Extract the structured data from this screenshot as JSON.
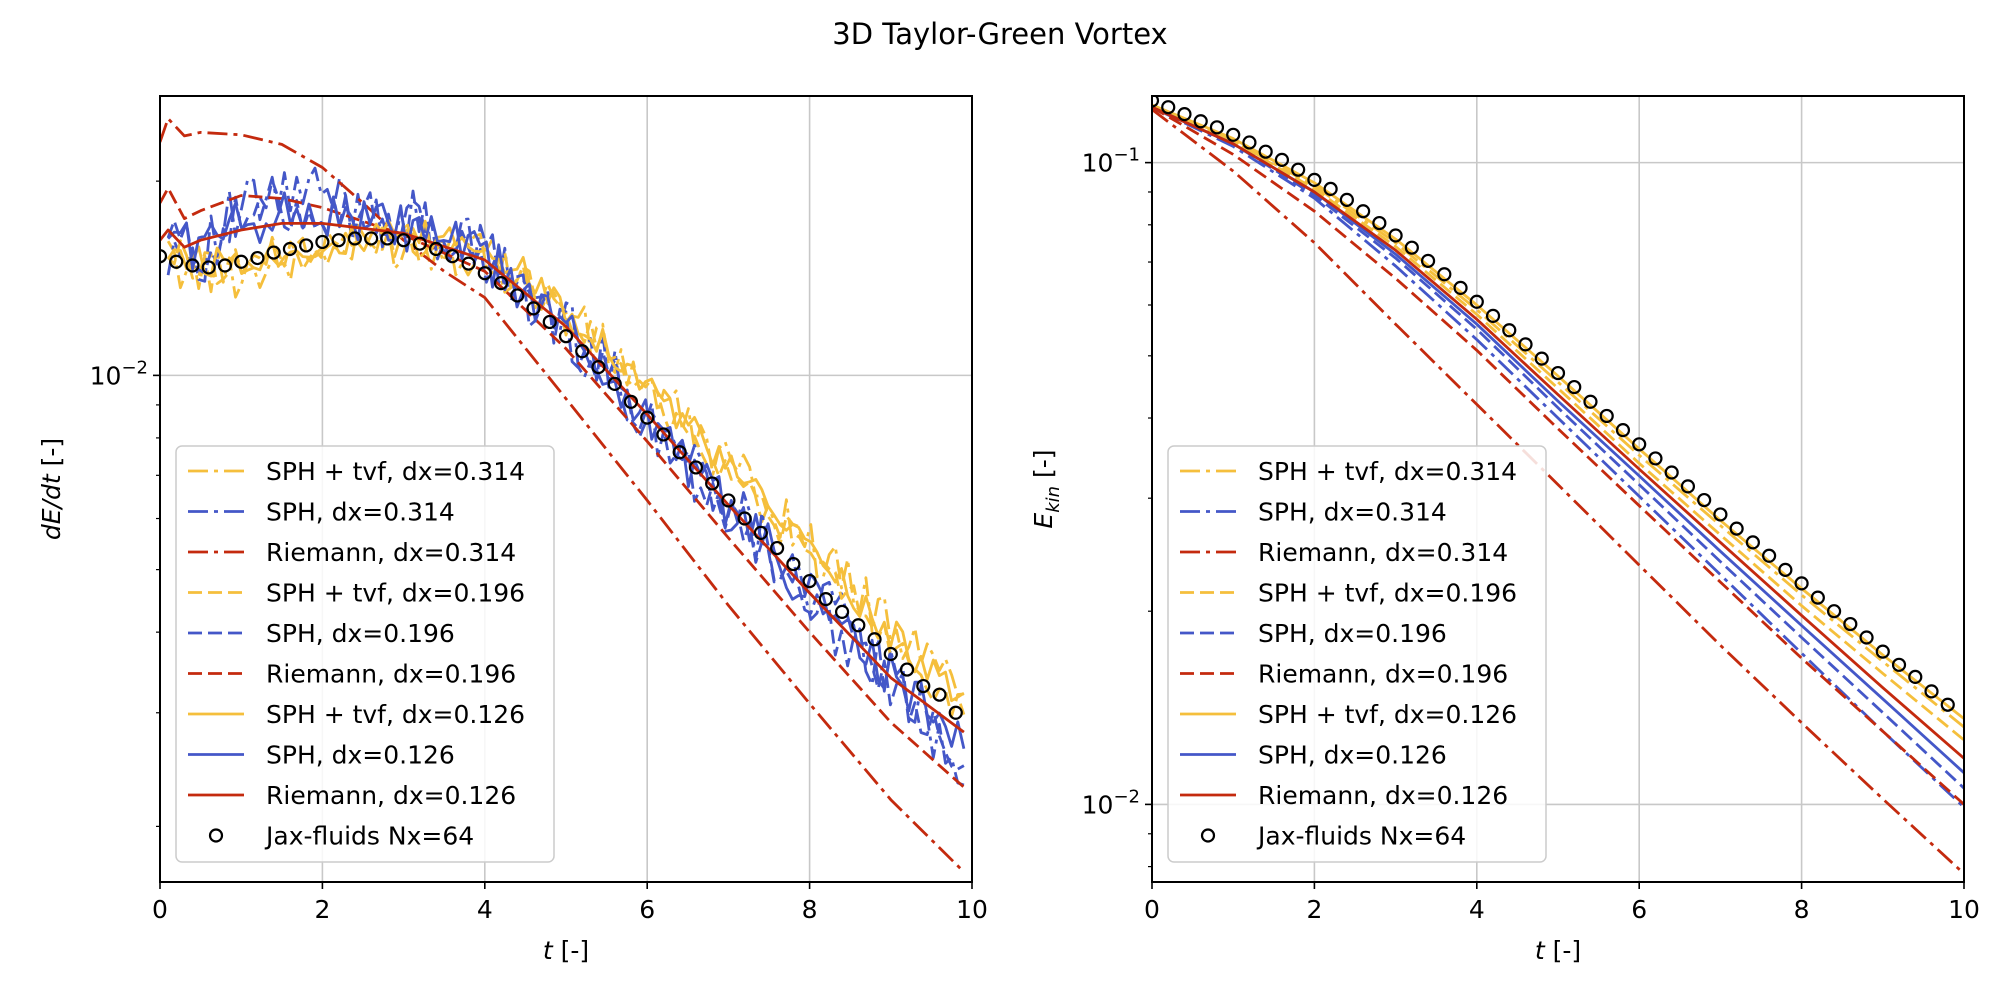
{
  "figure": {
    "title": "3D Taylor-Green Vortex"
  },
  "colors": {
    "SPH + tvf": "#f5bf3c",
    "SPH": "#4457c8",
    "Riemann": "#c42a0e",
    "Jax-fluids": "#000000",
    "grid": "#c8c8c8"
  },
  "chart_data": [
    {
      "type": "line",
      "ylog": true,
      "xlabel": "t [-]",
      "ylabel": "dE/dt [-]",
      "xlim": [
        0,
        10
      ],
      "ylim": [
        0.00164,
        0.0271
      ],
      "xticks": [
        0,
        2,
        4,
        6,
        8,
        10
      ],
      "ytick_labels": [
        {
          "value": 0.01,
          "label": "10^-2"
        }
      ],
      "grid": true,
      "legend": "lower-left",
      "series": [
        {
          "name": "SPH + tvf, dx=0.314",
          "color": "#f5bf3c",
          "dash": "dashdot",
          "noise": 0.09,
          "x": [
            0.1,
            0.5,
            1,
            2,
            3,
            4,
            5,
            6,
            7,
            8,
            9,
            9.9
          ],
          "y": [
            0.015,
            0.0145,
            0.0145,
            0.0155,
            0.016,
            0.0155,
            0.0125,
            0.0096,
            0.0073,
            0.0055,
            0.0041,
            0.0032
          ]
        },
        {
          "name": "SPH, dx=0.314",
          "color": "#4457c8",
          "dash": "dashdot",
          "noise": 0.12,
          "x": [
            0.1,
            0.5,
            1,
            1.5,
            2,
            3,
            4,
            5,
            6,
            7,
            8,
            9,
            9.9
          ],
          "y": [
            0.016,
            0.0155,
            0.018,
            0.019,
            0.019,
            0.0175,
            0.0155,
            0.012,
            0.0088,
            0.0064,
            0.0047,
            0.0034,
            0.0025
          ]
        },
        {
          "name": "Riemann, dx=0.314",
          "color": "#c42a0e",
          "dash": "dashdot",
          "noise": 0,
          "x": [
            0,
            0.1,
            0.3,
            0.5,
            1,
            1.5,
            2,
            2.5,
            3,
            3.5,
            4,
            5,
            6,
            7,
            8,
            9,
            9.9
          ],
          "y": [
            0.023,
            0.025,
            0.0235,
            0.0238,
            0.0236,
            0.0228,
            0.021,
            0.0185,
            0.0162,
            0.0145,
            0.0132,
            0.0092,
            0.0064,
            0.0044,
            0.0031,
            0.0022,
            0.0017
          ]
        },
        {
          "name": "SPH + tvf, dx=0.196",
          "color": "#f5bf3c",
          "dash": "dashed",
          "noise": 0.07,
          "x": [
            0.1,
            0.5,
            1,
            2,
            3,
            4,
            5,
            6,
            7,
            8,
            9,
            9.9
          ],
          "y": [
            0.0155,
            0.0148,
            0.015,
            0.0158,
            0.0163,
            0.0157,
            0.0126,
            0.0095,
            0.0071,
            0.0053,
            0.0039,
            0.003
          ]
        },
        {
          "name": "SPH, dx=0.196",
          "color": "#4457c8",
          "dash": "dashed",
          "noise": 0.1,
          "x": [
            0.1,
            0.5,
            1,
            1.5,
            2,
            3,
            4,
            5,
            6,
            7,
            8,
            9,
            9.9
          ],
          "y": [
            0.0165,
            0.0155,
            0.0175,
            0.0185,
            0.0182,
            0.0172,
            0.0152,
            0.0117,
            0.0085,
            0.0062,
            0.0045,
            0.0033,
            0.0026
          ]
        },
        {
          "name": "Riemann, dx=0.196",
          "color": "#c42a0e",
          "dash": "dashed",
          "noise": 0,
          "x": [
            0,
            0.1,
            0.3,
            0.5,
            1,
            1.5,
            2,
            3,
            4,
            5,
            6,
            7,
            8,
            9,
            9.9
          ],
          "y": [
            0.0185,
            0.0195,
            0.0175,
            0.018,
            0.019,
            0.0188,
            0.0182,
            0.0165,
            0.0145,
            0.011,
            0.0079,
            0.0056,
            0.004,
            0.0029,
            0.0023
          ]
        },
        {
          "name": "SPH + tvf, dx=0.126",
          "color": "#f5bf3c",
          "dash": "solid",
          "noise": 0.06,
          "x": [
            0.1,
            0.5,
            1,
            2,
            3,
            4,
            5,
            6,
            7,
            8,
            9,
            9.9
          ],
          "y": [
            0.0158,
            0.015,
            0.0152,
            0.016,
            0.0165,
            0.016,
            0.0128,
            0.0097,
            0.0072,
            0.0054,
            0.004,
            0.0031
          ]
        },
        {
          "name": "SPH, dx=0.126",
          "color": "#4457c8",
          "dash": "solid",
          "noise": 0.09,
          "x": [
            0.1,
            0.5,
            1,
            1.5,
            2,
            3,
            4,
            5,
            6,
            7,
            8,
            9,
            9.9
          ],
          "y": [
            0.0168,
            0.0158,
            0.0172,
            0.018,
            0.0178,
            0.017,
            0.0153,
            0.0118,
            0.0086,
            0.0063,
            0.0046,
            0.0034,
            0.0027
          ]
        },
        {
          "name": "Riemann, dx=0.126",
          "color": "#c42a0e",
          "dash": "solid",
          "noise": 0,
          "x": [
            0,
            0.1,
            0.3,
            0.5,
            1,
            1.5,
            2,
            3,
            4,
            5,
            6,
            7,
            8,
            9,
            9.9
          ],
          "y": [
            0.0162,
            0.0168,
            0.0158,
            0.0162,
            0.0168,
            0.0172,
            0.0172,
            0.0166,
            0.0151,
            0.0119,
            0.0087,
            0.0063,
            0.0046,
            0.0034,
            0.0028
          ]
        },
        {
          "name": "Jax-fluids Nx=64",
          "color": "#000000",
          "marker": "circle",
          "x": [
            0,
            0.2,
            0.4,
            0.6,
            0.8,
            1.0,
            1.2,
            1.4,
            1.6,
            1.8,
            2.0,
            2.2,
            2.4,
            2.6,
            2.8,
            3.0,
            3.2,
            3.4,
            3.6,
            3.8,
            4.0,
            4.2,
            4.4,
            4.6,
            4.8,
            5.0,
            5.2,
            5.4,
            5.6,
            5.8,
            6.0,
            6.2,
            6.4,
            6.6,
            6.8,
            7.0,
            7.2,
            7.4,
            7.6,
            7.8,
            8.0,
            8.2,
            8.4,
            8.6,
            8.8,
            9.0,
            9.2,
            9.4,
            9.6,
            9.8
          ],
          "y": [
            0.0153,
            0.015,
            0.0148,
            0.0147,
            0.0148,
            0.015,
            0.0152,
            0.0155,
            0.0157,
            0.0159,
            0.0161,
            0.0162,
            0.0163,
            0.0163,
            0.0163,
            0.0162,
            0.016,
            0.0157,
            0.0153,
            0.0149,
            0.0144,
            0.0139,
            0.0133,
            0.0127,
            0.0121,
            0.0115,
            0.0109,
            0.0103,
            0.0097,
            0.0091,
            0.0086,
            0.0081,
            0.0076,
            0.0072,
            0.0068,
            0.0064,
            0.006,
            0.0057,
            0.0054,
            0.0051,
            0.0048,
            0.0045,
            0.0043,
            0.0041,
            0.0039,
            0.0037,
            0.0035,
            0.0033,
            0.0032,
            0.003
          ]
        }
      ]
    },
    {
      "type": "line",
      "ylog": true,
      "xlabel": "t [-]",
      "ylabel": "E_kin [-]",
      "xlim": [
        0,
        10
      ],
      "ylim": [
        0.00757,
        0.127
      ],
      "xticks": [
        0,
        2,
        4,
        6,
        8,
        10
      ],
      "ytick_labels": [
        {
          "value": 0.1,
          "label": "10^-1"
        },
        {
          "value": 0.01,
          "label": "10^-2"
        }
      ],
      "grid": true,
      "legend": "lower-left",
      "series": [
        {
          "name": "SPH + tvf, dx=0.314",
          "color": "#f5bf3c",
          "dash": "dashdot",
          "x": [
            0,
            1,
            2,
            3,
            4,
            5,
            6,
            7,
            8,
            9,
            10
          ],
          "y": [
            0.122,
            0.108,
            0.092,
            0.075,
            0.059,
            0.0455,
            0.035,
            0.0272,
            0.0212,
            0.0167,
            0.0132
          ]
        },
        {
          "name": "SPH, dx=0.314",
          "color": "#4457c8",
          "dash": "dashdot",
          "x": [
            0,
            1,
            2,
            3,
            4,
            5,
            6,
            7,
            8,
            9,
            10
          ],
          "y": [
            0.122,
            0.106,
            0.088,
            0.069,
            0.053,
            0.04,
            0.0302,
            0.0228,
            0.0172,
            0.013,
            0.0099
          ]
        },
        {
          "name": "Riemann, dx=0.314",
          "color": "#c42a0e",
          "dash": "dashdot",
          "x": [
            0,
            1,
            2,
            3,
            4,
            5,
            6,
            7,
            8,
            9,
            10
          ],
          "y": [
            0.121,
            0.097,
            0.075,
            0.056,
            0.042,
            0.0315,
            0.0236,
            0.0177,
            0.0134,
            0.0102,
            0.0078
          ]
        },
        {
          "name": "SPH + tvf, dx=0.196",
          "color": "#f5bf3c",
          "dash": "dashed",
          "x": [
            0,
            1,
            2,
            3,
            4,
            5,
            6,
            7,
            8,
            9,
            10
          ],
          "y": [
            0.122,
            0.108,
            0.091,
            0.074,
            0.058,
            0.0445,
            0.034,
            0.0263,
            0.0204,
            0.016,
            0.0126
          ]
        },
        {
          "name": "SPH, dx=0.196",
          "color": "#4457c8",
          "dash": "dashed",
          "x": [
            0,
            1,
            2,
            3,
            4,
            5,
            6,
            7,
            8,
            9,
            10
          ],
          "y": [
            0.122,
            0.107,
            0.089,
            0.071,
            0.055,
            0.0415,
            0.0315,
            0.0239,
            0.0182,
            0.0139,
            0.0106
          ]
        },
        {
          "name": "Riemann, dx=0.196",
          "color": "#c42a0e",
          "dash": "dashed",
          "x": [
            0,
            1,
            2,
            3,
            4,
            5,
            6,
            7,
            8,
            9,
            10
          ],
          "y": [
            0.122,
            0.103,
            0.084,
            0.066,
            0.051,
            0.0385,
            0.0292,
            0.0222,
            0.0169,
            0.013,
            0.01
          ]
        },
        {
          "name": "SPH + tvf, dx=0.126",
          "color": "#f5bf3c",
          "dash": "solid",
          "x": [
            0,
            1,
            2,
            3,
            4,
            5,
            6,
            7,
            8,
            9,
            10
          ],
          "y": [
            0.123,
            0.109,
            0.093,
            0.076,
            0.06,
            0.0465,
            0.0358,
            0.0277,
            0.0217,
            0.0171,
            0.0136
          ]
        },
        {
          "name": "SPH, dx=0.126",
          "color": "#4457c8",
          "dash": "solid",
          "x": [
            0,
            1,
            2,
            3,
            4,
            5,
            6,
            7,
            8,
            9,
            10
          ],
          "y": [
            0.122,
            0.107,
            0.09,
            0.072,
            0.056,
            0.0425,
            0.0325,
            0.0248,
            0.019,
            0.0146,
            0.0112
          ]
        },
        {
          "name": "Riemann, dx=0.126",
          "color": "#c42a0e",
          "dash": "solid",
          "x": [
            0,
            1,
            2,
            3,
            4,
            5,
            6,
            7,
            8,
            9,
            10
          ],
          "y": [
            0.122,
            0.107,
            0.09,
            0.073,
            0.057,
            0.0435,
            0.0333,
            0.0256,
            0.0197,
            0.0152,
            0.0118
          ]
        },
        {
          "name": "Jax-fluids Nx=64",
          "color": "#000000",
          "marker": "circle",
          "x": [
            0,
            0.2,
            0.4,
            0.6,
            0.8,
            1.0,
            1.2,
            1.4,
            1.6,
            1.8,
            2.0,
            2.2,
            2.4,
            2.6,
            2.8,
            3.0,
            3.2,
            3.4,
            3.6,
            3.8,
            4.0,
            4.2,
            4.4,
            4.6,
            4.8,
            5.0,
            5.2,
            5.4,
            5.6,
            5.8,
            6.0,
            6.2,
            6.4,
            6.6,
            6.8,
            7.0,
            7.2,
            7.4,
            7.6,
            7.8,
            8.0,
            8.2,
            8.4,
            8.6,
            8.8,
            9.0,
            9.2,
            9.4,
            9.6,
            9.8
          ],
          "y": [
            0.125,
            0.122,
            0.119,
            0.116,
            0.1135,
            0.1105,
            0.1075,
            0.104,
            0.101,
            0.0975,
            0.094,
            0.091,
            0.0875,
            0.084,
            0.0805,
            0.077,
            0.0737,
            0.0703,
            0.067,
            0.0638,
            0.0607,
            0.0577,
            0.0548,
            0.0521,
            0.0495,
            0.047,
            0.0447,
            0.0424,
            0.0403,
            0.0383,
            0.0364,
            0.0346,
            0.0329,
            0.0313,
            0.0298,
            0.0283,
            0.0269,
            0.0256,
            0.0244,
            0.0232,
            0.0221,
            0.021,
            0.02,
            0.0191,
            0.0182,
            0.0173,
            0.0165,
            0.0158,
            0.015,
            0.0143
          ]
        }
      ]
    }
  ]
}
